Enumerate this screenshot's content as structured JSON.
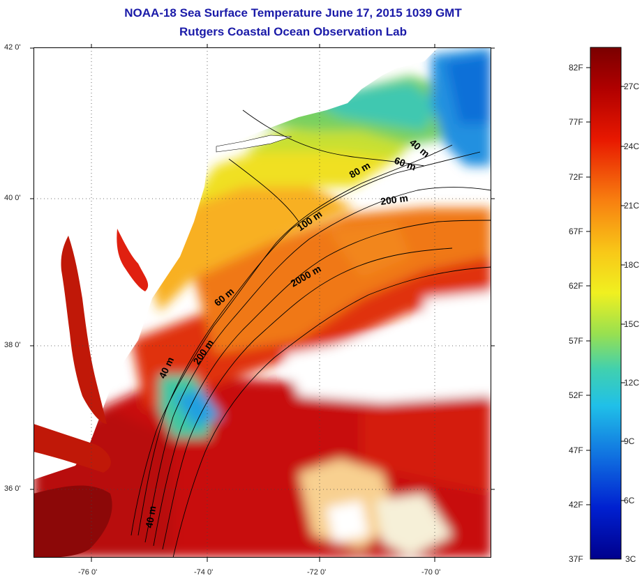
{
  "title": {
    "line1": "NOAA-18 Sea Surface Temperature June 17, 2015 1039 GMT",
    "line2": "Rutgers Coastal Ocean Observation Lab"
  },
  "map": {
    "lat_ticks": [
      "42 0'",
      "40 0'",
      "38 0'",
      "36 0'"
    ],
    "lon_ticks": [
      "-76 0'",
      "-74 0'",
      "-72 0'",
      "-70 0'"
    ],
    "contour_labels": [
      "40 m",
      "60 m",
      "80 m",
      "200 m",
      "100 m",
      "2000 m",
      "60 m",
      "200 m",
      "40 m",
      "40 m"
    ]
  },
  "colorbar": {
    "fahrenheit": [
      "82F",
      "77F",
      "72F",
      "67F",
      "62F",
      "57F",
      "52F",
      "47F",
      "42F",
      "37F"
    ],
    "celsius": [
      "27C",
      "24C",
      "21C",
      "18C",
      "15C",
      "12C",
      "9C",
      "6C",
      "3C"
    ]
  }
}
